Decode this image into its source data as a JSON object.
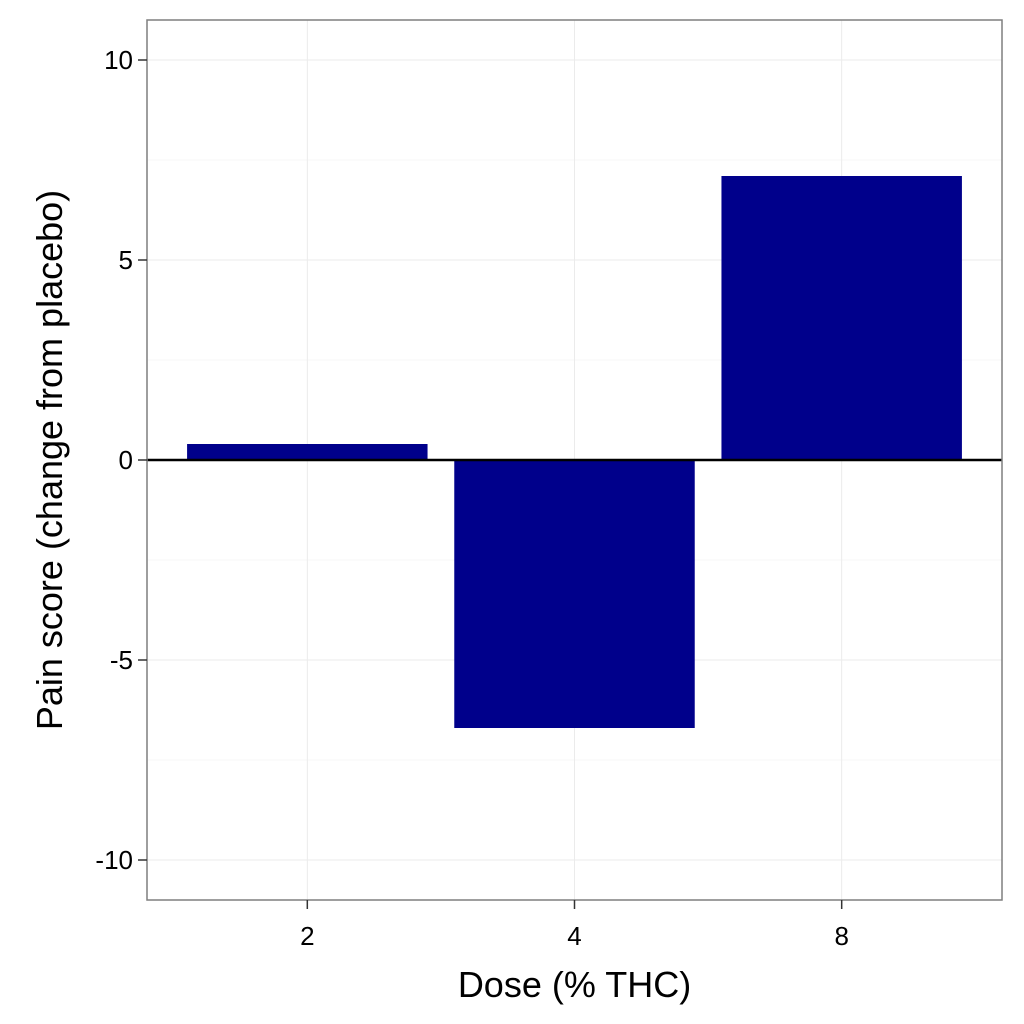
{
  "chart_data": {
    "type": "bar",
    "title": "",
    "xlabel": "Dose (% THC)",
    "ylabel": "Pain score (change from placebo)",
    "categories": [
      "2",
      "4",
      "8"
    ],
    "values": [
      0.4,
      -6.7,
      7.1
    ],
    "ylim": [
      -11,
      11
    ],
    "yticks": [
      -10,
      -5,
      0,
      5,
      10
    ],
    "ytick_labels": [
      "-10",
      "-5",
      "0",
      "5",
      "10"
    ],
    "grid": true,
    "zero_line": true,
    "legend": "none",
    "colors": {
      "bar": "#00008B",
      "grid": "#EBEBEB",
      "panel_border": "#7F7F7F",
      "zero_line": "#000000"
    }
  }
}
